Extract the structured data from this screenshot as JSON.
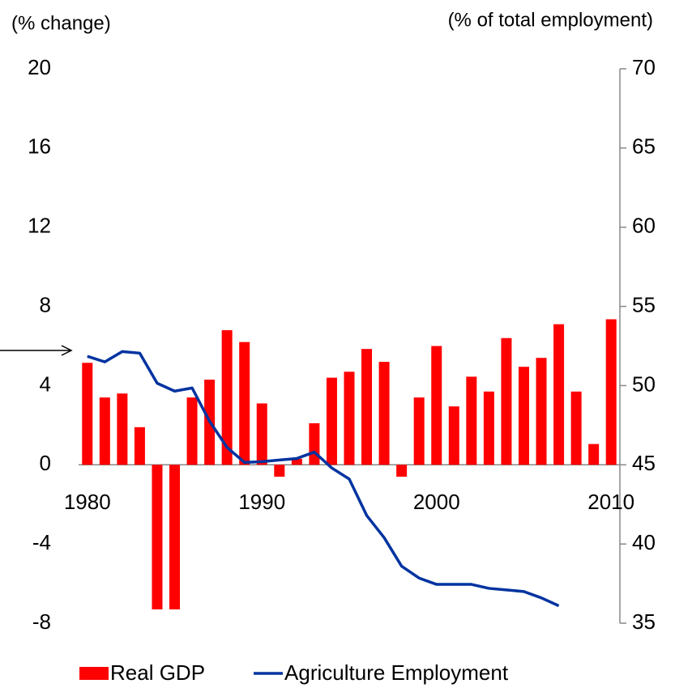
{
  "chart_data": {
    "type": "bar_line",
    "y_label": "(% change)",
    "y2_label": "(% of total employment)",
    "categories": [
      "1980",
      null,
      null,
      null,
      null,
      null,
      null,
      null,
      null,
      null,
      "1990",
      null,
      null,
      null,
      null,
      null,
      null,
      null,
      null,
      null,
      "2000",
      null,
      null,
      null,
      null,
      null,
      null,
      null,
      null,
      null,
      "2010"
    ],
    "series": [
      {
        "name": "Real GDP",
        "type": "bar",
        "color": "#ff0000",
        "values": [
          5.15,
          3.4,
          3.6,
          1.9,
          -7.3,
          -7.3,
          3.4,
          4.3,
          6.8,
          6.2,
          3.1,
          -0.6,
          0.3,
          2.1,
          4.4,
          4.7,
          5.85,
          5.2,
          -0.6,
          3.4,
          6.0,
          2.95,
          4.45,
          3.7,
          6.4,
          4.95,
          5.4,
          7.1,
          3.7,
          1.05,
          7.35
        ]
      },
      {
        "name": "Agriculture Employment",
        "type": "line",
        "axis": "y2",
        "color": "#0033a0",
        "values": [
          51.85,
          51.5,
          52.15,
          52.05,
          50.15,
          49.65,
          49.85,
          47.75,
          46.1,
          45.15,
          45.2,
          45.3,
          45.4,
          45.8,
          44.8,
          44.1,
          41.8,
          40.4,
          38.6,
          37.85,
          37.45,
          37.45,
          37.45,
          37.2,
          37.1,
          37.0,
          36.6,
          36.1,
          null,
          null,
          null
        ]
      }
    ],
    "ylim": [
      -8,
      20
    ],
    "yticks": [
      -8,
      -4,
      0,
      4,
      8,
      12,
      16,
      20
    ],
    "y2lim": [
      35,
      70
    ],
    "y2ticks": [
      35,
      40,
      45,
      50,
      55,
      60,
      65,
      70
    ],
    "grid": false,
    "legend": "bottom"
  }
}
